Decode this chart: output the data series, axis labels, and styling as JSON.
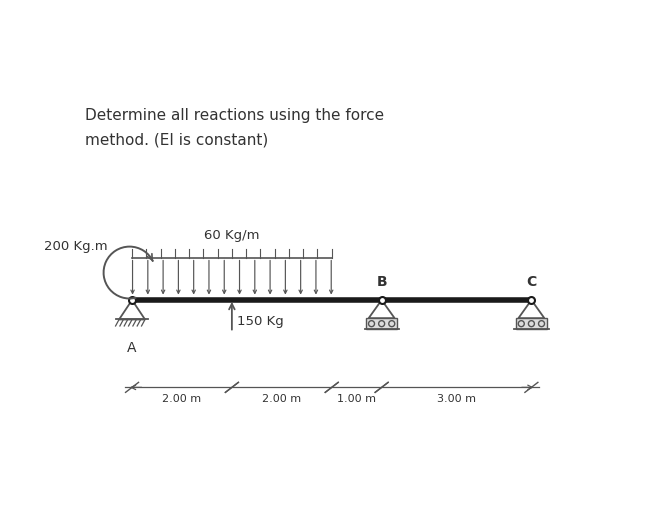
{
  "title_line1": "Determine all reactions using the force",
  "title_line2": "method. (EI is constant)",
  "beam_color": "#1a1a1a",
  "support_color": "#555555",
  "beam_y": 0.0,
  "node_A_x": 0.0,
  "node_B_x": 5.0,
  "node_C_x": 8.0,
  "distributed_load_start": 0.0,
  "distributed_load_end": 4.0,
  "distributed_load_label": "60 Kg/m",
  "point_load_x": 2.0,
  "point_load_label": "150 Kg",
  "moment_label": "200 Kg.m",
  "label_A": "A",
  "label_B": "B",
  "label_C": "C",
  "dim_labels": [
    "2.00 m",
    "2.00 m",
    "1.00 m",
    "3.00 m"
  ],
  "dim_starts": [
    0.0,
    2.0,
    4.0,
    5.0
  ],
  "dim_ends": [
    2.0,
    4.0,
    5.0,
    8.0
  ],
  "xlim": [
    -1.0,
    9.2
  ],
  "ylim": [
    -2.6,
    4.2
  ],
  "figsize": [
    6.57,
    5.15
  ],
  "dpi": 100
}
